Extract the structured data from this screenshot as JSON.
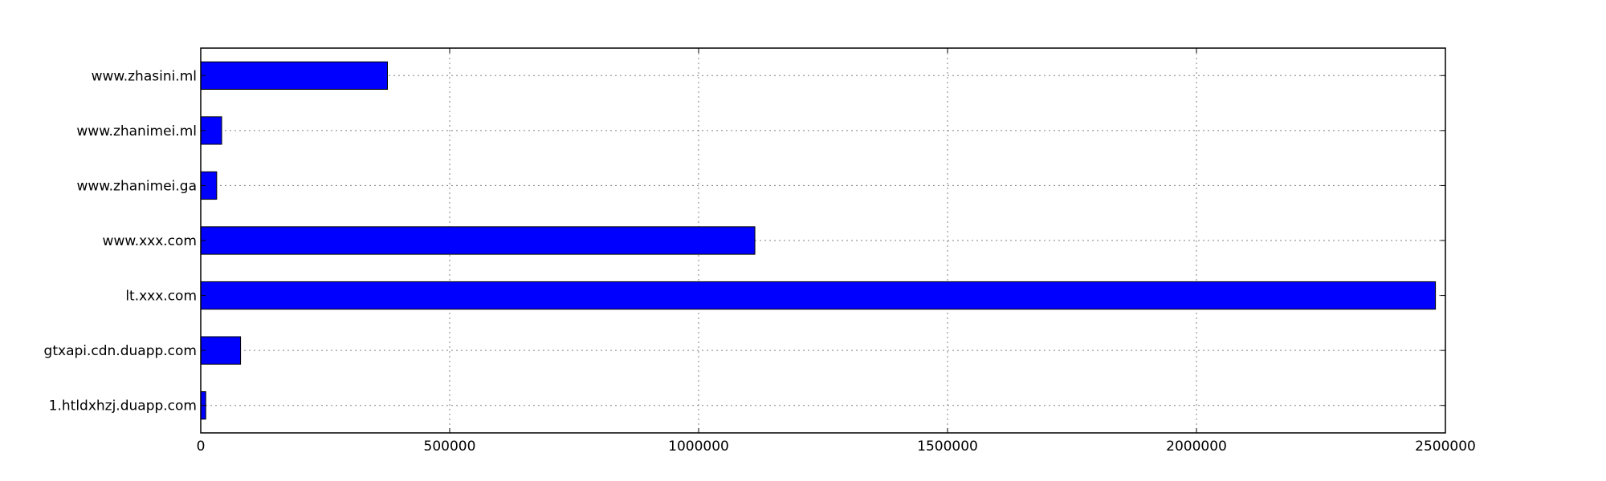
{
  "chart_data": {
    "type": "bar",
    "orientation": "horizontal",
    "title": "",
    "xlabel": "",
    "ylabel": "",
    "categories": [
      "1.htldxhzj.duapp.com",
      "gtxapi.cdn.duapp.com",
      "lt.xxx.com",
      "www.xxx.com",
      "www.zhanimei.ga",
      "www.zhanimei.ml",
      "www.zhasini.ml"
    ],
    "values": [
      10000,
      80000,
      2480000,
      1113000,
      32000,
      42000,
      375000
    ],
    "xlim": [
      0,
      2500000
    ],
    "xticks": [
      0,
      500000,
      1000000,
      1500000,
      2000000,
      2500000
    ],
    "xtick_labels": [
      "0",
      "500000",
      "1000000",
      "1500000",
      "2000000",
      "2500000"
    ],
    "grid": true,
    "legend": "none",
    "colors": {
      "bar_fill": "#0000ff",
      "bar_edge": "#000000",
      "grid": "#808080"
    }
  }
}
